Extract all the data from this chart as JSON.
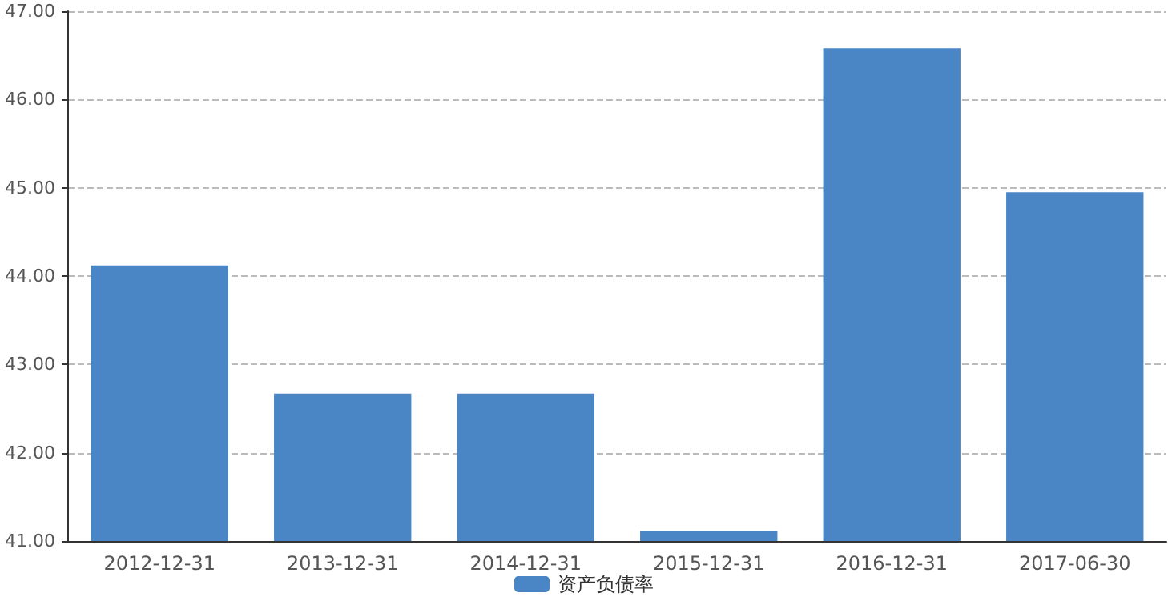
{
  "chart_data": {
    "type": "bar",
    "categories": [
      "2012-12-31",
      "2013-12-31",
      "2014-12-31",
      "2015-12-31",
      "2016-12-31",
      "2017-06-30"
    ],
    "series": [
      {
        "name": "资产负债率",
        "color": "#4a86c5",
        "values": [
          44.12,
          42.67,
          42.67,
          41.11,
          46.58,
          44.95
        ]
      }
    ],
    "ylim": [
      41,
      47
    ],
    "yticks": [
      {
        "value": 41,
        "label": "41.00"
      },
      {
        "value": 42,
        "label": "42.00"
      },
      {
        "value": 43,
        "label": "43.00"
      },
      {
        "value": 44,
        "label": "44.00"
      },
      {
        "value": 45,
        "label": "45.00"
      },
      {
        "value": 46,
        "label": "46.00"
      },
      {
        "value": 47,
        "label": "47.00"
      }
    ],
    "grid": "y",
    "legend": "bottom"
  }
}
